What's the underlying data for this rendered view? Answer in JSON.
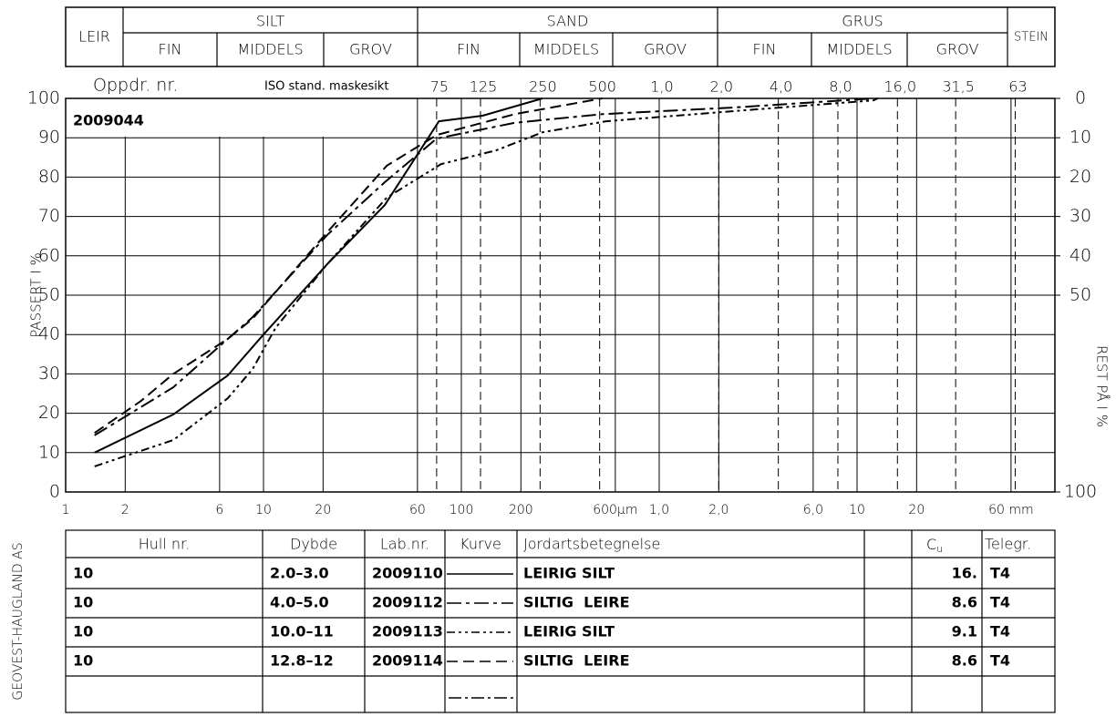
{
  "header": {
    "fractions": [
      {
        "name": "LEIR"
      },
      {
        "name": "SILT",
        "parts": [
          "FIN",
          "MIDDELS",
          "GROV"
        ]
      },
      {
        "name": "SAND",
        "parts": [
          "FIN",
          "MIDDELS",
          "GROV"
        ]
      },
      {
        "name": "GRUS",
        "parts": [
          "FIN",
          "MIDDELS",
          "GROV"
        ]
      },
      {
        "name": "STEIN"
      }
    ]
  },
  "chart_data": {
    "type": "line",
    "assignment_label": "Oppdr. nr.",
    "assignment": "2009044",
    "sieve_label": "ISO stand. maskesikt",
    "ylabel": "PASSERT I %",
    "y2label": "REST PÅ I %",
    "xscale": "log",
    "xlim": [
      0.001,
      100
    ],
    "ylim": [
      0,
      100
    ],
    "y2lim": [
      100,
      0
    ],
    "yticks": [
      0,
      10,
      20,
      30,
      40,
      50,
      60,
      70,
      80,
      90,
      100
    ],
    "y2ticks": [
      0,
      10,
      20,
      30,
      40,
      50,
      100
    ],
    "xticks": [
      {
        "value": 0.001,
        "label": "1"
      },
      {
        "value": 0.002,
        "label": "2"
      },
      {
        "value": 0.006,
        "label": "6"
      },
      {
        "value": 0.01,
        "label": "10"
      },
      {
        "value": 0.02,
        "label": "20"
      },
      {
        "value": 0.06,
        "label": "60"
      },
      {
        "value": 0.1,
        "label": "100"
      },
      {
        "value": 0.2,
        "label": "200"
      },
      {
        "value": 0.6,
        "label": "600µm"
      },
      {
        "value": 1,
        "label": "1,0"
      },
      {
        "value": 2,
        "label": "2,0"
      },
      {
        "value": 6,
        "label": "6,0"
      },
      {
        "value": 10,
        "label": "10"
      },
      {
        "value": 20,
        "label": "20"
      },
      {
        "value": 60,
        "label": "60 mm"
      }
    ],
    "sieve_ticks": [
      {
        "value": 0.075,
        "label": "75"
      },
      {
        "value": 0.125,
        "label": "125"
      },
      {
        "value": 0.25,
        "label": "250"
      },
      {
        "value": 0.5,
        "label": "500"
      },
      {
        "value": 1,
        "label": "1,0"
      },
      {
        "value": 2,
        "label": "2,0"
      },
      {
        "value": 4,
        "label": "4,0"
      },
      {
        "value": 8,
        "label": "8,0"
      },
      {
        "value": 16,
        "label": "16,0"
      },
      {
        "value": 31.5,
        "label": "31,5"
      },
      {
        "value": 63,
        "label": "63"
      }
    ],
    "grid": true,
    "series": [
      {
        "name": "2009110",
        "color": "#000000",
        "line_style": "solid",
        "x": [
          0.0014,
          0.0035,
          0.0066,
          0.01,
          0.021,
          0.041,
          0.077,
          0.128,
          0.257
        ],
        "values": [
          10,
          19.7,
          29.6,
          40,
          57.9,
          72.9,
          94.2,
          95.6,
          100
        ]
      },
      {
        "name": "2009112",
        "color": "#000000",
        "line_style": "dashdot",
        "x": [
          0.0014,
          0.0035,
          0.0066,
          0.0088,
          0.021,
          0.041,
          0.075,
          0.186,
          0.515,
          2.43,
          12.1
        ],
        "values": [
          14.4,
          26.6,
          38.9,
          44.4,
          65.3,
          78.7,
          89.8,
          93.8,
          96,
          97.7,
          100
        ]
      },
      {
        "name": "2009113",
        "color": "#000000",
        "line_style": "dashdotdot",
        "x": [
          0.0014,
          0.0035,
          0.0066,
          0.0088,
          0.0115,
          0.021,
          0.042,
          0.079,
          0.15,
          0.257,
          0.54,
          2.43,
          12.1,
          12.7
        ],
        "values": [
          6.5,
          13.2,
          23.8,
          31.2,
          41.7,
          57.9,
          74.8,
          83.3,
          86.8,
          91.4,
          94.2,
          96.8,
          99.5,
          100
        ]
      },
      {
        "name": "2009114",
        "color": "#000000",
        "line_style": "dashed",
        "x": [
          0.0014,
          0.0024,
          0.0035,
          0.0066,
          0.0088,
          0.021,
          0.042,
          0.075,
          0.186,
          0.515
        ],
        "values": [
          15,
          23.1,
          30,
          38.9,
          44,
          66,
          82.9,
          90.7,
          96,
          100
        ]
      }
    ]
  },
  "table": {
    "columns": [
      "Hull nr.",
      "Dybde",
      "Lab.nr.",
      "Kurve",
      "Jordartsbetegnelse"
    ],
    "cu_header": "C",
    "cu_subscript": "u",
    "telegr_header": "Telegr.",
    "rows": [
      {
        "hull": "10",
        "depth": "2.0–3.0",
        "soil": "LEIRIG SILT",
        "cu": "16.",
        "telegr": "T4"
      },
      {
        "hull": "10",
        "depth": "4.0–5.0",
        "soil": "SILTIG  LEIRE",
        "cu": "8.6",
        "telegr": "T4"
      },
      {
        "hull": "10",
        "depth": "10.0–11",
        "soil": "LEIRIG SILT",
        "cu": "9.1",
        "telegr": "T4"
      },
      {
        "hull": "10",
        "depth": "12.8–12",
        "soil": "SILTIG  LEIRE",
        "cu": "8.6",
        "telegr": "T4"
      }
    ]
  },
  "company": "GEOVEST-HAUGLAND AS"
}
